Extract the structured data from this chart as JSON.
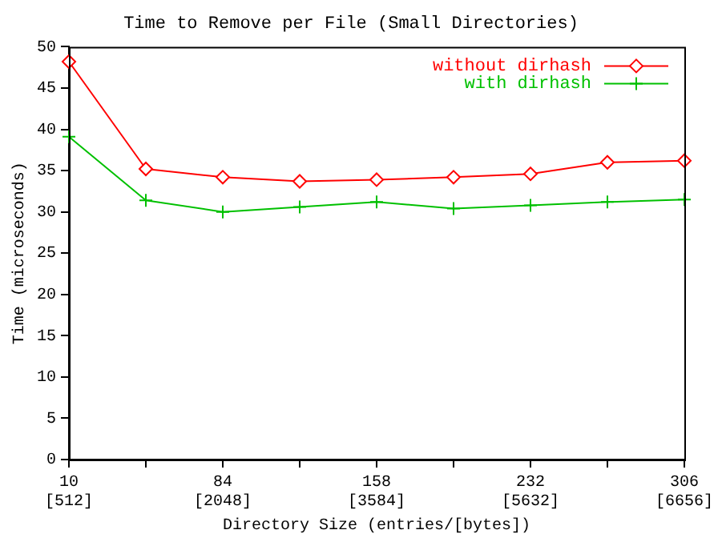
{
  "chart_data": {
    "type": "line",
    "title": "Time to Remove per File (Small Directories)",
    "xlabel": "Directory Size (entries/[bytes])",
    "ylabel": "Time (microseconds)",
    "categories": [
      "10\n[512]",
      null,
      "84\n[2048]",
      null,
      "158\n[3584]",
      null,
      "232\n[5632]",
      null,
      "306\n[6656]"
    ],
    "series": [
      {
        "name": "without dirhash",
        "color": "#ff0000",
        "marker": "diamond",
        "values": [
          48.2,
          35.2,
          34.2,
          33.7,
          33.9,
          34.2,
          34.6,
          36.0,
          36.2
        ]
      },
      {
        "name": "with dirhash",
        "color": "#00c000",
        "marker": "cross",
        "values": [
          39.1,
          31.4,
          30.0,
          30.6,
          31.2,
          30.4,
          30.8,
          31.2,
          31.5
        ]
      }
    ],
    "ylim": [
      0,
      50
    ],
    "yticks": [
      0,
      5,
      10,
      15,
      20,
      25,
      30,
      35,
      40,
      45,
      50
    ],
    "grid": false,
    "legend": "top right",
    "line_style": "solid"
  }
}
